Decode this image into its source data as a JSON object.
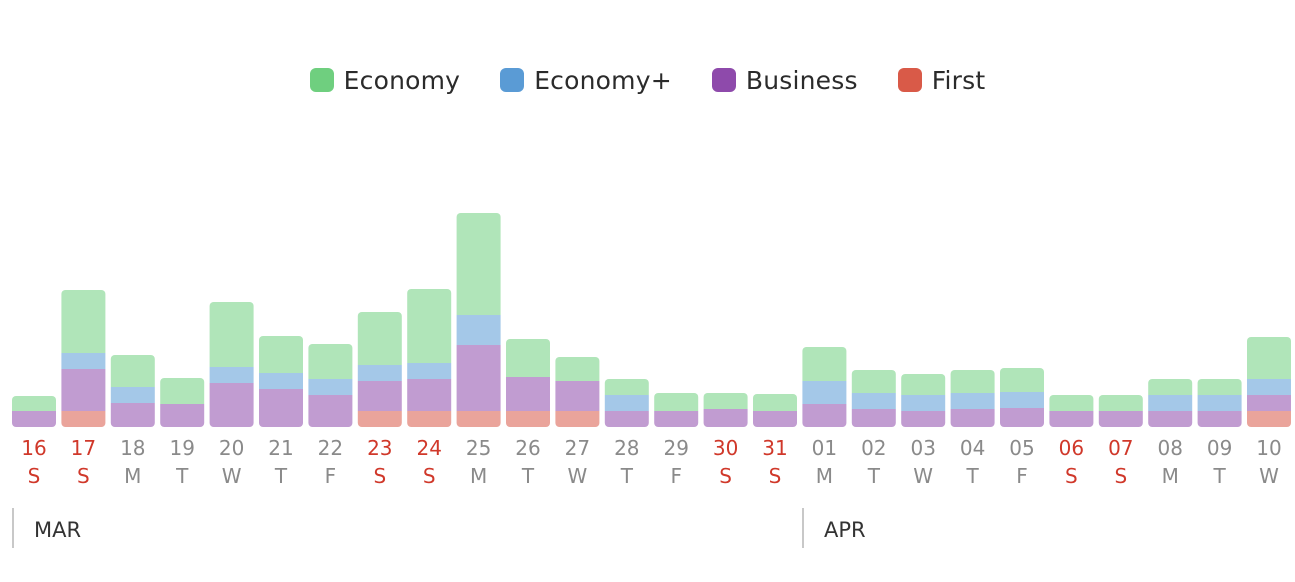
{
  "colors": {
    "economy": "#6fcf7f",
    "economy_plus": "#5a9bd5",
    "business": "#8e4aab",
    "first": "#d95a48",
    "weekend_text": "#d0382a",
    "weekday_text": "#8a8a8a"
  },
  "legend": [
    {
      "label": "Economy",
      "color": "#6fcf7f"
    },
    {
      "label": "Economy+",
      "color": "#5a9bd5"
    },
    {
      "label": "Business",
      "color": "#8e4aab"
    },
    {
      "label": "First",
      "color": "#d95a48"
    }
  ],
  "months": [
    "MAR",
    "APR"
  ],
  "chart_data": {
    "type": "bar",
    "stacked": true,
    "grid": false,
    "legend_position": "top-center",
    "categories": [
      {
        "day": "16",
        "weekday": "S",
        "weekend": true
      },
      {
        "day": "17",
        "weekday": "S",
        "weekend": true
      },
      {
        "day": "18",
        "weekday": "M",
        "weekend": false
      },
      {
        "day": "19",
        "weekday": "T",
        "weekend": false
      },
      {
        "day": "20",
        "weekday": "W",
        "weekend": false
      },
      {
        "day": "21",
        "weekday": "T",
        "weekend": false
      },
      {
        "day": "22",
        "weekday": "F",
        "weekend": false
      },
      {
        "day": "23",
        "weekday": "S",
        "weekend": true
      },
      {
        "day": "24",
        "weekday": "S",
        "weekend": true
      },
      {
        "day": "25",
        "weekday": "M",
        "weekend": false
      },
      {
        "day": "26",
        "weekday": "T",
        "weekend": false
      },
      {
        "day": "27",
        "weekday": "W",
        "weekend": false
      },
      {
        "day": "28",
        "weekday": "T",
        "weekend": false
      },
      {
        "day": "29",
        "weekday": "F",
        "weekend": false
      },
      {
        "day": "30",
        "weekday": "S",
        "weekend": true
      },
      {
        "day": "31",
        "weekday": "S",
        "weekend": true
      },
      {
        "day": "01",
        "weekday": "M",
        "weekend": false
      },
      {
        "day": "02",
        "weekday": "T",
        "weekend": false
      },
      {
        "day": "03",
        "weekday": "W",
        "weekend": false
      },
      {
        "day": "04",
        "weekday": "T",
        "weekend": false
      },
      {
        "day": "05",
        "weekday": "F",
        "weekend": false
      },
      {
        "day": "06",
        "weekday": "S",
        "weekend": true
      },
      {
        "day": "07",
        "weekday": "S",
        "weekend": true
      },
      {
        "day": "08",
        "weekday": "M",
        "weekend": false
      },
      {
        "day": "09",
        "weekday": "T",
        "weekend": false
      },
      {
        "day": "10",
        "weekday": "W",
        "weekend": false
      }
    ],
    "series": [
      {
        "name": "First",
        "color": "#d95a48",
        "values": [
          0,
          16,
          0,
          0,
          0,
          0,
          0,
          16,
          16,
          16,
          16,
          16,
          0,
          0,
          0,
          0,
          0,
          0,
          0,
          0,
          0,
          0,
          0,
          0,
          0,
          16
        ]
      },
      {
        "name": "Business",
        "color": "#8e4aab",
        "values": [
          16,
          42,
          24,
          23,
          44,
          38,
          32,
          30,
          32,
          66,
          34,
          30,
          16,
          16,
          18,
          16,
          23,
          18,
          16,
          18,
          19,
          16,
          16,
          16,
          16,
          16
        ]
      },
      {
        "name": "Economy+",
        "color": "#5a9bd5",
        "values": [
          0,
          16,
          16,
          0,
          16,
          16,
          16,
          16,
          16,
          30,
          0,
          0,
          16,
          0,
          0,
          0,
          23,
          16,
          16,
          16,
          16,
          0,
          0,
          16,
          16,
          16
        ]
      },
      {
        "name": "Economy",
        "color": "#6fcf7f",
        "values": [
          15,
          63,
          32,
          26,
          65,
          37,
          35,
          53,
          74,
          102,
          38,
          24,
          16,
          18,
          16,
          17,
          34,
          23,
          21,
          23,
          24,
          16,
          16,
          16,
          16,
          42
        ]
      }
    ]
  }
}
